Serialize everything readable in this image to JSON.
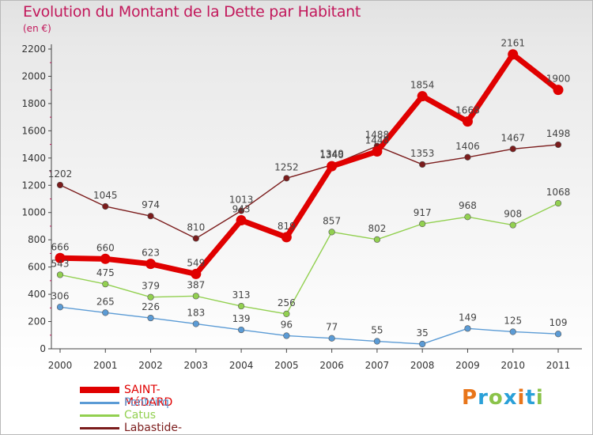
{
  "header": {
    "title": "Evolution du Montant de la Dette par Habitant",
    "unit": "(en €)"
  },
  "logo": {
    "text": "Proxiti",
    "colors": [
      "#e8751a",
      "#2aa0d8",
      "#8bc34a",
      "#2aa0d8",
      "#e8751a",
      "#2aa0d8",
      "#8bc34a"
    ]
  },
  "chart_data": {
    "type": "line",
    "title": "Evolution du Montant de la Dette par Habitant",
    "ylabel": "(en €)",
    "x": [
      "2000",
      "2001",
      "2002",
      "2003",
      "2004",
      "2005",
      "2006",
      "2007",
      "2008",
      "2009",
      "2010",
      "2011"
    ],
    "ylim": [
      0,
      2200
    ],
    "yticks": [
      0,
      200,
      400,
      600,
      800,
      1000,
      1200,
      1400,
      1600,
      1800,
      2000,
      2200
    ],
    "grid": false,
    "legend_position": "bottom-left",
    "series": [
      {
        "name": "SAINT-MéDARD",
        "color": "#e00000",
        "values": [
          666,
          660,
          623,
          549,
          943,
          819,
          1340,
          1448,
          1854,
          1668,
          2161,
          1900
        ]
      },
      {
        "name": "Pontcirq",
        "color": "#5b9bd5",
        "values": [
          306,
          265,
          226,
          183,
          139,
          96,
          77,
          55,
          35,
          149,
          125,
          109
        ]
      },
      {
        "name": "Catus",
        "color": "#92d050",
        "values": [
          543,
          475,
          379,
          387,
          313,
          256,
          857,
          802,
          917,
          968,
          908,
          1068
        ]
      },
      {
        "name": "Labastide-du-Vert",
        "color": "#7b1c1c",
        "values": [
          1202,
          1045,
          974,
          810,
          1013,
          1252,
          1349,
          1488,
          1353,
          1406,
          1467,
          1498
        ]
      }
    ]
  }
}
